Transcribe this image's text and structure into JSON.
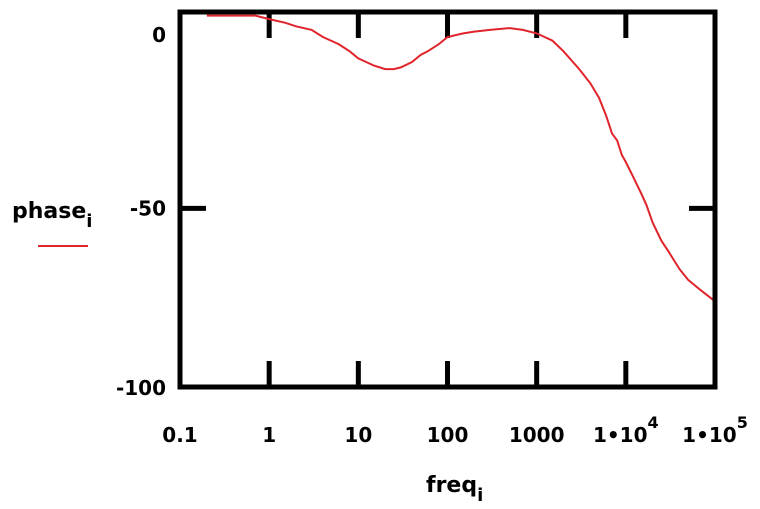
{
  "chart_data": {
    "type": "line",
    "title": "",
    "xlabel": "freq",
    "xlabel_subscript": "i",
    "ylabel": "phase",
    "ylabel_subscript": "i",
    "x_scale": "log",
    "xlim": [
      0.1,
      100000
    ],
    "ylim": [
      -100,
      5
    ],
    "x_ticks": [
      {
        "value": 0.1,
        "label": "0.1"
      },
      {
        "value": 1,
        "label": "1"
      },
      {
        "value": 10,
        "label": "10"
      },
      {
        "value": 100,
        "label": "100"
      },
      {
        "value": 1000,
        "label": "1000"
      },
      {
        "value": 10000,
        "label": "1•10",
        "sup": "4"
      },
      {
        "value": 100000,
        "label": "1•10",
        "sup": "5"
      }
    ],
    "y_ticks": [
      {
        "value": 0,
        "label": "0"
      },
      {
        "value": -50,
        "label": "-50"
      },
      {
        "value": -100,
        "label": "-100"
      }
    ],
    "grid": false,
    "legend_position": "left",
    "series": [
      {
        "name": "phase",
        "color": "#e0242c",
        "x": [
          0.2,
          0.3,
          0.5,
          0.7,
          1,
          1.5,
          2,
          3,
          4,
          6,
          8,
          10,
          15,
          20,
          25,
          30,
          40,
          50,
          60,
          80,
          100,
          150,
          200,
          300,
          500,
          700,
          1000,
          1500,
          2000,
          3000,
          4000,
          5000,
          6000,
          7000,
          8000,
          9000,
          10000,
          12000,
          15000,
          17000,
          20000,
          25000,
          30000,
          40000,
          50000,
          70000,
          100000
        ],
        "y": [
          4,
          4,
          4,
          4,
          3,
          2,
          1,
          0,
          -2,
          -4,
          -6,
          -8,
          -10,
          -11,
          -11,
          -10.5,
          -9,
          -7,
          -6,
          -4,
          -2,
          -1,
          -0.5,
          0,
          0.5,
          0,
          -1,
          -3,
          -6,
          -11,
          -15,
          -19,
          -24,
          -29,
          -31,
          -35,
          -37,
          -41,
          -46,
          -49,
          -54,
          -59,
          -62,
          -67,
          -70,
          -73,
          -76
        ]
      }
    ]
  }
}
